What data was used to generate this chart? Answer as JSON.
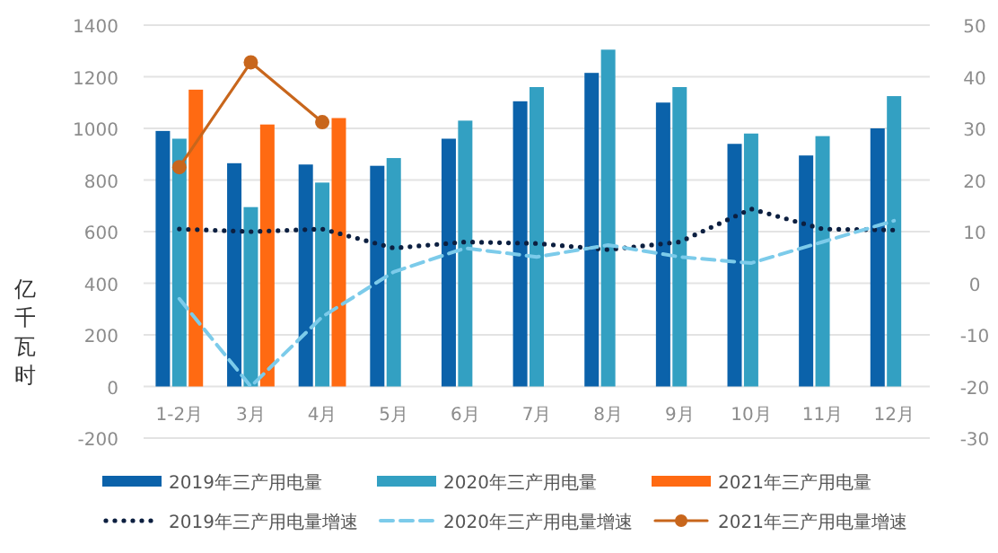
{
  "chart_data": {
    "type": "bar",
    "ylabel": "亿千瓦时",
    "categories": [
      "1-2月",
      "3月",
      "4月",
      "5月",
      "6月",
      "7月",
      "8月",
      "9月",
      "10月",
      "11月",
      "12月"
    ],
    "series": [
      {
        "name": "2019年三产用电量",
        "color": "#0b62aa",
        "values": [
          990,
          865,
          860,
          855,
          960,
          1105,
          1215,
          1100,
          940,
          895,
          1000
        ]
      },
      {
        "name": "2020年三产用电量",
        "color": "#33a0c2",
        "values": [
          960,
          695,
          790,
          885,
          1030,
          1160,
          1305,
          1160,
          980,
          970,
          1125
        ]
      },
      {
        "name": "2021年三产用电量",
        "color": "#ff6a12",
        "values": [
          1150,
          1015,
          1040,
          null,
          null,
          null,
          null,
          null,
          null,
          null,
          null
        ]
      },
      {
        "name": "2019年三产用电量增速",
        "type": "line",
        "axis": "y2",
        "color": "#0c1f40",
        "line_style": "dotted",
        "marker": "none",
        "values": [
          10.5,
          10.0,
          10.5,
          6.8,
          8.0,
          7.7,
          6.5,
          8.0,
          14.4,
          10.5,
          10.3
        ]
      },
      {
        "name": "2020年三产用电量增速",
        "type": "line",
        "axis": "y2",
        "color": "#7ccbea",
        "line_style": "dashed",
        "marker": "none",
        "values": [
          -3.0,
          -20,
          -6.5,
          2.2,
          6.8,
          5.1,
          7.4,
          5.1,
          3.9,
          8.0,
          12.1
        ]
      },
      {
        "name": "2021年三产用电量增速",
        "type": "line",
        "axis": "y2",
        "color": "#c8661c",
        "line_style": "solid",
        "marker": "circle",
        "values": [
          22.5,
          42.8,
          31.2,
          null,
          null,
          null,
          null,
          null,
          null,
          null,
          null
        ]
      }
    ],
    "ylim": [
      -200,
      1400
    ],
    "yticks": [
      -200,
      0,
      200,
      400,
      600,
      800,
      1000,
      1200,
      1400
    ],
    "y2lim": [
      -30,
      50
    ],
    "y2ticks": [
      -30,
      -20,
      -10,
      0,
      10,
      20,
      30,
      40,
      50
    ],
    "grid": "y",
    "legend": "bottom"
  }
}
